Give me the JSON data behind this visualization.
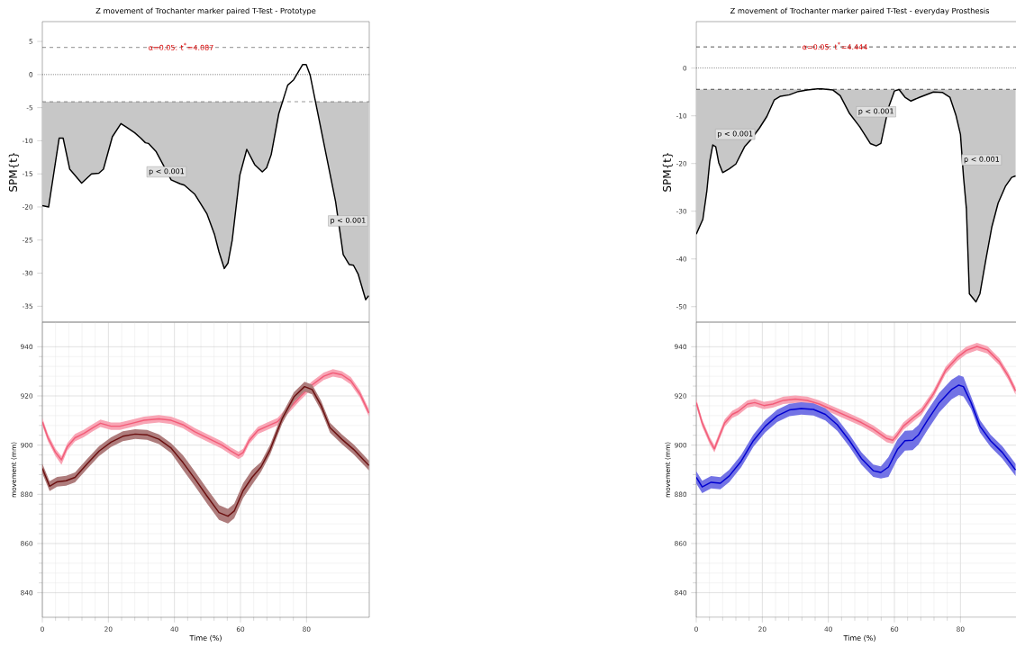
{
  "chart_data": [
    {
      "type": "line",
      "title": "Z movement of Trochanter marker paired T-Test - Prototype",
      "ylabel": "SPM{t}",
      "xlim": [
        0,
        99
      ],
      "ylim": [
        -37.4,
        8
      ],
      "yticks": [
        -35,
        -30,
        -25,
        -20,
        -15,
        -10,
        -5,
        0,
        5
      ],
      "tick_labels": "y",
      "series": [
        {
          "color": "#000000",
          "x": [
            0,
            1.9,
            5.1,
            6.3,
            8.3,
            11.9,
            14.9,
            17.1,
            18.5,
            21.2,
            23.8,
            25.3,
            28.0,
            29.8,
            31.2,
            32.1,
            34.4,
            37.1,
            39.0,
            41.7,
            43.0,
            46.2,
            49.8,
            52.1,
            53.5,
            55.1,
            56.2,
            57.5,
            59.8,
            61.9,
            64.3,
            66.6,
            67.9,
            69.3,
            71.6,
            74.3,
            76.1,
            78.8,
            79.9,
            81.1,
            83.4,
            86.1,
            88.8,
            91.1,
            92.9,
            94.2,
            95.6,
            97.9,
            98.8
          ],
          "values": [
            -19.8,
            -20.0,
            -9.6,
            -9.6,
            -14.3,
            -16.4,
            -15.0,
            -14.9,
            -14.3,
            -9.4,
            -7.4,
            -7.9,
            -8.8,
            -9.6,
            -10.3,
            -10.4,
            -11.6,
            -14.1,
            -15.9,
            -16.5,
            -16.7,
            -18.1,
            -21.0,
            -24.1,
            -26.8,
            -29.3,
            -28.5,
            -25.0,
            -15.2,
            -11.3,
            -13.6,
            -14.7,
            -14.1,
            -12.1,
            -5.9,
            -1.6,
            -0.8,
            1.5,
            1.5,
            -0.1,
            -5.8,
            -12.5,
            -19.2,
            -27.2,
            -28.7,
            -28.8,
            -30.1,
            -34.0,
            -33.4
          ]
        }
      ],
      "ref_lines": [
        {
          "axis": "y",
          "value": 4.087,
          "line_style": "dashed"
        },
        {
          "axis": "y",
          "value": 0,
          "line_style": "dotted"
        },
        {
          "axis": "y",
          "value": -4.087,
          "line_style": "dashed"
        }
      ],
      "annotations": [
        {
          "text": "α=0.05: t$^{*}$=4.087",
          "x": 42,
          "y": 4.087
        },
        "p < 0.001",
        "p < 0.001"
      ]
    },
    {
      "type": "line",
      "title": "Z movement of Trochanter marker paired T-Test - everyday Prosthesis",
      "ylabel": "SPM{t}",
      "xlim": [
        0,
        99
      ],
      "ylim": [
        -53.25,
        9.75
      ],
      "yticks": [
        -50,
        -40,
        -30,
        -20,
        -10,
        0
      ],
      "tick_labels": "y",
      "series": [
        {
          "color": "#000000",
          "x": [
            0,
            2,
            3.2,
            4.1,
            5,
            5.9,
            6.8,
            8,
            10,
            12,
            14.7,
            16.4,
            19.1,
            21.4,
            23.6,
            25.5,
            28.2,
            30.9,
            33.6,
            37.3,
            41.4,
            43.6,
            46.4,
            49.5,
            52.7,
            54.5,
            55.9,
            58.2,
            60,
            61.4,
            63.2,
            65,
            67.7,
            71.8,
            74.5,
            76.8,
            78.6,
            80,
            80.9,
            81.8,
            82.7,
            84.7,
            85.9,
            87.7,
            89.5,
            91.4,
            93.6,
            95.5,
            96.7
          ],
          "values": [
            -34.8,
            -31.7,
            -25.8,
            -19.5,
            -16.1,
            -16.5,
            -19.8,
            -21.9,
            -21.1,
            -20.1,
            -16.4,
            -15.1,
            -12.6,
            -10.1,
            -6.7,
            -5.9,
            -5.6,
            -4.9,
            -4.6,
            -4.3,
            -4.6,
            -5.8,
            -9.5,
            -12.3,
            -15.8,
            -16.3,
            -15.8,
            -8.3,
            -4.8,
            -4.5,
            -6.1,
            -6.9,
            -6.1,
            -5.0,
            -5.1,
            -6.1,
            -9.8,
            -13.9,
            -22.6,
            -29.5,
            -47.3,
            -49.0,
            -47.3,
            -40.1,
            -33.3,
            -28.3,
            -24.8,
            -22.9,
            -22.6
          ]
        }
      ],
      "ref_lines": [
        {
          "axis": "y",
          "value": 4.444,
          "line_style": "dashed"
        },
        {
          "axis": "y",
          "value": 0,
          "line_style": "dotted"
        },
        {
          "axis": "y",
          "value": -4.444,
          "line_style": "dashed"
        }
      ],
      "annotations": [
        {
          "text": "α=0.05: t$^{*}$=4.444",
          "x": 42,
          "y": 4.444
        },
        "p < 0.001",
        "p < 0.001",
        "p < 0.001"
      ]
    },
    {
      "type": "line",
      "xlabel": "Time (%)",
      "ylabel": "movement (mm)",
      "xlim": [
        0,
        99
      ],
      "ylim": [
        830,
        950
      ],
      "xticks": [
        0,
        20,
        40,
        60,
        80
      ],
      "yticks": [
        840,
        860,
        880,
        900,
        920,
        940
      ],
      "grid": true,
      "series": [
        {
          "color": "#f25c78",
          "x": [
            0,
            1.7,
            4,
            5.8,
            7.6,
            9.9,
            12.6,
            15.3,
            17.6,
            20.8,
            23.5,
            27.2,
            30.8,
            35.3,
            39,
            42.6,
            46.2,
            50.8,
            54.4,
            57.1,
            59.4,
            60.8,
            62.6,
            65.3,
            68.1,
            71.2,
            74.4,
            78,
            81.6,
            85.2,
            88,
            90.7,
            93.4,
            96.2,
            98.9
          ],
          "values": [
            909.5,
            903,
            897,
            894,
            899.4,
            903,
            904.8,
            907.1,
            908.9,
            907.7,
            907.7,
            908.9,
            910.1,
            910.7,
            910.1,
            908.3,
            905.4,
            902.4,
            900,
            897.6,
            895.8,
            897,
            901.8,
            906,
            907.7,
            909.5,
            914.3,
            919.6,
            924.4,
            928,
            929.4,
            928.6,
            926.2,
            920.8,
            913.1
          ],
          "lower": [
            908,
            901.5,
            895.5,
            892,
            897.9,
            901.5,
            903.3,
            905.6,
            907.4,
            906.2,
            906.2,
            907.4,
            908.6,
            909.2,
            908.6,
            906.8,
            903.9,
            900.9,
            898.5,
            896.1,
            894.3,
            895.5,
            900.3,
            904.5,
            906.2,
            908,
            912.8,
            918.1,
            922.9,
            926.5,
            927.9,
            927.1,
            924.7,
            919.3,
            911.6
          ],
          "upper": [
            911,
            904.5,
            898.5,
            895.5,
            900.9,
            904.5,
            906.3,
            908.6,
            910.4,
            909.2,
            909.2,
            910.4,
            911.6,
            912.2,
            911.6,
            909.8,
            906.9,
            903.9,
            901.5,
            899.1,
            897.3,
            898.5,
            903.3,
            907.5,
            909.2,
            911,
            915.8,
            921.1,
            925.9,
            929.5,
            930.9,
            930.1,
            927.7,
            922.3,
            914.6
          ]
        },
        {
          "color": "#6b1010",
          "x": [
            0,
            2.2,
            4.5,
            7.2,
            9.9,
            13.5,
            17.2,
            20.8,
            24.4,
            28.1,
            31.7,
            35.3,
            39,
            42.6,
            46.2,
            49.9,
            53.5,
            56.2,
            58.1,
            60.8,
            63.5,
            66.2,
            69,
            72.6,
            76.2,
            79.4,
            81.7,
            84.4,
            87.1,
            90.7,
            94.3,
            98.9
          ],
          "values": [
            890.5,
            883.3,
            885.1,
            885.5,
            886.9,
            892.3,
            897.6,
            901.2,
            903.6,
            904.5,
            904.2,
            902.4,
            898.8,
            892.9,
            886.3,
            879.2,
            872.6,
            871.1,
            873.2,
            881.5,
            886.9,
            891.1,
            898.2,
            910.7,
            919.6,
            923.8,
            922.6,
            916.1,
            907.1,
            902.4,
            898.2,
            891.7
          ],
          "lower": [
            888.5,
            881.3,
            883.1,
            883.5,
            884.9,
            890.3,
            895.6,
            899.2,
            901.6,
            902.5,
            902.2,
            900.4,
            896.8,
            889.9,
            883.3,
            876.2,
            869.6,
            868.1,
            870.2,
            878.5,
            883.9,
            889.1,
            896.2,
            908.7,
            917.6,
            921.8,
            920.6,
            914.1,
            905.1,
            900.4,
            896.2,
            889.7
          ],
          "upper": [
            892.5,
            885.3,
            887.1,
            887.5,
            888.9,
            894.3,
            899.6,
            903.2,
            905.6,
            906.5,
            906.2,
            904.4,
            900.8,
            895.9,
            889.3,
            882.2,
            875.6,
            874.1,
            876.2,
            884.5,
            889.9,
            893.1,
            900.2,
            912.7,
            921.6,
            925.8,
            924.6,
            918.1,
            909.1,
            904.4,
            900.2,
            893.7
          ]
        }
      ]
    },
    {
      "type": "line",
      "xlabel": "Time (%)",
      "ylabel": "movement (mm)",
      "xlim": [
        0,
        99
      ],
      "ylim": [
        830,
        950
      ],
      "xticks": [
        0,
        20,
        40,
        60,
        80
      ],
      "yticks": [
        840,
        860,
        880,
        900,
        920,
        940
      ],
      "grid": true,
      "series": [
        {
          "color": "#f25c78",
          "x": [
            0,
            1.8,
            4.1,
            5.5,
            6.8,
            8.6,
            10.9,
            12.7,
            15.5,
            17.7,
            20.5,
            23.2,
            26.4,
            30,
            33.6,
            37.3,
            40.9,
            45.5,
            50,
            53.6,
            57.7,
            59.5,
            60.9,
            62.7,
            65.9,
            68.2,
            71.8,
            75.5,
            79.1,
            81.8,
            85,
            88.2,
            91.8,
            94.5,
            96.7
          ],
          "values": [
            917.3,
            909,
            901.8,
            898.5,
            903,
            909,
            912.5,
            913.7,
            916.7,
            917.3,
            916.1,
            916.7,
            918.2,
            918.7,
            918.2,
            916.7,
            914.6,
            911.9,
            909.2,
            906.5,
            902.7,
            902,
            904.2,
            907.7,
            911.3,
            913.7,
            920.8,
            930.4,
            935.7,
            938.5,
            940.1,
            938.7,
            933.9,
            928,
            922
          ],
          "lower": [
            915.8,
            907.5,
            900.3,
            897,
            901.5,
            907.5,
            911,
            912.2,
            915.2,
            915.8,
            914.6,
            915.2,
            916.7,
            917.2,
            916.7,
            915.2,
            913.1,
            910.4,
            907.7,
            905,
            901.2,
            900.5,
            902.7,
            906.2,
            909.8,
            912.2,
            919.3,
            928.9,
            934.2,
            937,
            938.6,
            937.2,
            932.4,
            926.5,
            920.5
          ],
          "upper": [
            918.8,
            910.5,
            903.3,
            900,
            904.5,
            910.5,
            914,
            915.2,
            918.2,
            918.8,
            917.6,
            918.2,
            919.7,
            920.2,
            919.7,
            918.2,
            916.1,
            913.4,
            910.7,
            908,
            904.2,
            903.5,
            905.7,
            909.2,
            912.8,
            915.2,
            922.3,
            931.9,
            937.2,
            940,
            941.6,
            940.2,
            935.4,
            929.5,
            923.5
          ]
        },
        {
          "color": "#0000d0",
          "x": [
            0,
            1.8,
            4.5,
            7.3,
            10,
            13.6,
            17.3,
            20.9,
            24.5,
            28.2,
            31.8,
            35.5,
            39.1,
            42.7,
            46.4,
            50,
            53.6,
            55.9,
            58.2,
            60.9,
            63.2,
            65.5,
            67.3,
            70,
            73.6,
            77.3,
            79.5,
            80.9,
            83.2,
            85.9,
            89.1,
            92.7,
            96.7
          ],
          "values": [
            886.9,
            883,
            884.9,
            884.5,
            887.5,
            893.5,
            901.8,
            907.7,
            911.9,
            914.3,
            914.9,
            914.5,
            912.5,
            908.3,
            901.8,
            894.6,
            889.6,
            888.9,
            891.1,
            898.2,
            901.8,
            902,
            904.2,
            910.1,
            917.3,
            922.6,
            924.4,
            923.8,
            917.3,
            907.7,
            901.8,
            897,
            889.9
          ],
          "lower": [
            884.4,
            880.5,
            882.4,
            882,
            885,
            891,
            899.3,
            905.2,
            909.4,
            911.8,
            912.4,
            912,
            910,
            905.8,
            899.3,
            892.1,
            887.1,
            886.4,
            887.1,
            894.2,
            897.8,
            898,
            900.2,
            906.1,
            913.3,
            918.6,
            920.4,
            919.8,
            914.8,
            905.2,
            899.3,
            894.5,
            887.4
          ],
          "upper": [
            889.4,
            885.5,
            887.4,
            887,
            890,
            896,
            904.3,
            910.2,
            914.4,
            916.8,
            917.4,
            917,
            915,
            910.8,
            904.3,
            897.1,
            892.1,
            891.4,
            895.1,
            902.2,
            905.8,
            906,
            908.2,
            914.1,
            921.3,
            926.6,
            928.4,
            927.8,
            919.8,
            910.2,
            904.3,
            899.5,
            892.4
          ]
        }
      ]
    }
  ]
}
